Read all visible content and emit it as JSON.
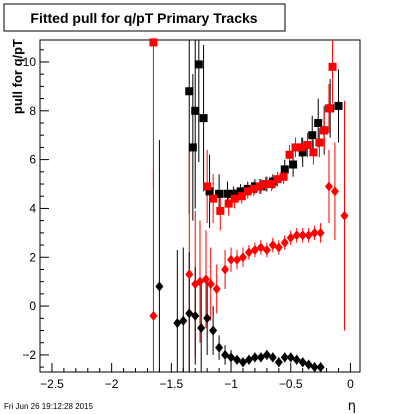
{
  "chart_data": {
    "type": "scatter",
    "title": "Fitted pull for q/pT  Primary Tracks",
    "ylabel": "pull for q/pT",
    "xlabel": "η",
    "timestamp": "Fri Jun 26 19:12:28 2015",
    "xlim": [
      -2.6,
      0.08
    ],
    "ylim": [
      -2.7,
      10.9
    ],
    "x_ticks": [
      -2.5,
      -2,
      -1.5,
      -1,
      -0.5,
      0
    ],
    "x_tick_labels": [
      "−2.5",
      "−2",
      "−1.5",
      "−1",
      "−0.5",
      "0"
    ],
    "y_ticks": [
      -2,
      0,
      2,
      4,
      6,
      8,
      10
    ],
    "y_tick_labels": [
      "−2",
      "0",
      "2",
      "4",
      "6",
      "8",
      "10"
    ],
    "grid": false,
    "legend": "none",
    "series": [
      {
        "color": "#000000",
        "marker": "square",
        "points": [
          {
            "x": -1.35,
            "y": 8.8,
            "err": 5.0
          },
          {
            "x": -1.3,
            "y": 8.0,
            "err": 4.0
          },
          {
            "x": -1.27,
            "y": 9.9,
            "err": 4.0
          },
          {
            "x": -1.23,
            "y": 7.7,
            "err": 3.0
          },
          {
            "x": -1.32,
            "y": 6.5,
            "err": 3.0
          },
          {
            "x": -1.18,
            "y": 4.7,
            "err": 1.5
          },
          {
            "x": -1.1,
            "y": 4.6,
            "err": 0.8
          },
          {
            "x": -1.03,
            "y": 4.6,
            "err": 0.5
          },
          {
            "x": -0.98,
            "y": 4.6,
            "err": 0.3
          },
          {
            "x": -0.92,
            "y": 4.7,
            "err": 0.3
          },
          {
            "x": -0.86,
            "y": 4.8,
            "err": 0.3
          },
          {
            "x": -0.8,
            "y": 4.9,
            "err": 0.3
          },
          {
            "x": -0.75,
            "y": 4.9,
            "err": 0.3
          },
          {
            "x": -0.7,
            "y": 5.0,
            "err": 0.3
          },
          {
            "x": -0.65,
            "y": 5.1,
            "err": 0.3
          },
          {
            "x": -0.55,
            "y": 5.6,
            "err": 0.4
          },
          {
            "x": -0.48,
            "y": 5.8,
            "err": 0.5
          },
          {
            "x": -0.4,
            "y": 6.3,
            "err": 0.6
          },
          {
            "x": -0.32,
            "y": 7.0,
            "err": 0.8
          },
          {
            "x": -0.27,
            "y": 7.5,
            "err": 1.0
          },
          {
            "x": -0.22,
            "y": 7.2,
            "err": 1.0
          },
          {
            "x": -0.17,
            "y": 8.1,
            "err": 1.2
          },
          {
            "x": -0.1,
            "y": 8.2,
            "err": 1.5
          }
        ]
      },
      {
        "color": "#ff0000",
        "marker": "square",
        "points": [
          {
            "x": -1.65,
            "y": 10.8,
            "err": 6.0
          },
          {
            "x": -1.2,
            "y": 4.9,
            "err": 1.5
          },
          {
            "x": -1.15,
            "y": 4.4,
            "err": 1.0
          },
          {
            "x": -1.09,
            "y": 3.9,
            "err": 0.8
          },
          {
            "x": -1.02,
            "y": 4.2,
            "err": 0.5
          },
          {
            "x": -0.97,
            "y": 4.4,
            "err": 0.4
          },
          {
            "x": -0.91,
            "y": 4.5,
            "err": 0.3
          },
          {
            "x": -0.86,
            "y": 4.7,
            "err": 0.3
          },
          {
            "x": -0.81,
            "y": 4.8,
            "err": 0.3
          },
          {
            "x": -0.76,
            "y": 4.9,
            "err": 0.3
          },
          {
            "x": -0.71,
            "y": 5.0,
            "err": 0.3
          },
          {
            "x": -0.66,
            "y": 5.0,
            "err": 0.3
          },
          {
            "x": -0.61,
            "y": 5.2,
            "err": 0.3
          },
          {
            "x": -0.56,
            "y": 5.3,
            "err": 0.3
          },
          {
            "x": -0.51,
            "y": 6.2,
            "err": 0.4
          },
          {
            "x": -0.46,
            "y": 6.5,
            "err": 0.4
          },
          {
            "x": -0.41,
            "y": 6.5,
            "err": 0.4
          },
          {
            "x": -0.36,
            "y": 6.6,
            "err": 0.5
          },
          {
            "x": -0.31,
            "y": 6.3,
            "err": 0.5
          },
          {
            "x": -0.26,
            "y": 6.7,
            "err": 0.6
          },
          {
            "x": -0.22,
            "y": 7.2,
            "err": 0.8
          },
          {
            "x": -0.18,
            "y": 8.1,
            "err": 1.0
          },
          {
            "x": -0.15,
            "y": 9.8,
            "err": 1.5
          }
        ]
      },
      {
        "color": "#ff0000",
        "marker": "diamond",
        "points": [
          {
            "x": -1.65,
            "y": -0.4,
            "err": 6.0
          },
          {
            "x": -1.35,
            "y": 1.3,
            "err": 5.0
          },
          {
            "x": -1.3,
            "y": 0.9,
            "err": 3.0
          },
          {
            "x": -1.26,
            "y": 1.0,
            "err": 2.5
          },
          {
            "x": -1.21,
            "y": 1.1,
            "err": 2.0
          },
          {
            "x": -1.17,
            "y": 0.9,
            "err": 1.5
          },
          {
            "x": -1.12,
            "y": 0.7,
            "err": 1.0
          },
          {
            "x": -1.05,
            "y": 1.5,
            "err": 0.8
          },
          {
            "x": -1.0,
            "y": 1.9,
            "err": 0.5
          },
          {
            "x": -0.95,
            "y": 1.9,
            "err": 0.4
          },
          {
            "x": -0.9,
            "y": 2.0,
            "err": 0.4
          },
          {
            "x": -0.85,
            "y": 2.2,
            "err": 0.3
          },
          {
            "x": -0.8,
            "y": 2.3,
            "err": 0.3
          },
          {
            "x": -0.75,
            "y": 2.4,
            "err": 0.3
          },
          {
            "x": -0.7,
            "y": 2.3,
            "err": 0.3
          },
          {
            "x": -0.65,
            "y": 2.5,
            "err": 0.3
          },
          {
            "x": -0.6,
            "y": 2.4,
            "err": 0.3
          },
          {
            "x": -0.55,
            "y": 2.6,
            "err": 0.3
          },
          {
            "x": -0.5,
            "y": 2.8,
            "err": 0.3
          },
          {
            "x": -0.45,
            "y": 2.9,
            "err": 0.3
          },
          {
            "x": -0.4,
            "y": 2.9,
            "err": 0.3
          },
          {
            "x": -0.35,
            "y": 2.9,
            "err": 0.3
          },
          {
            "x": -0.3,
            "y": 3.0,
            "err": 0.3
          },
          {
            "x": -0.25,
            "y": 3.0,
            "err": 0.4
          },
          {
            "x": -0.18,
            "y": 4.9,
            "err": 1.5
          },
          {
            "x": -0.13,
            "y": 4.7,
            "err": 2.0
          },
          {
            "x": -0.05,
            "y": 3.7,
            "err": 4.7
          }
        ]
      },
      {
        "color": "#000000",
        "marker": "diamond",
        "points": [
          {
            "x": -1.6,
            "y": 0.8,
            "err": 6.0
          },
          {
            "x": -1.45,
            "y": -0.7,
            "err": 3.0
          },
          {
            "x": -1.4,
            "y": -0.6,
            "err": 3.0
          },
          {
            "x": -1.35,
            "y": -0.3,
            "err": 2.5
          },
          {
            "x": -1.3,
            "y": -0.4,
            "err": 2.0
          },
          {
            "x": -1.25,
            "y": -0.9,
            "err": 2.0
          },
          {
            "x": -1.2,
            "y": -0.5,
            "err": 1.5
          },
          {
            "x": -1.15,
            "y": -1.0,
            "err": 1.0
          },
          {
            "x": -1.1,
            "y": -1.7,
            "err": 0.5
          },
          {
            "x": -1.05,
            "y": -2.0,
            "err": 0.4
          },
          {
            "x": -1.0,
            "y": -2.1,
            "err": 0.3
          },
          {
            "x": -0.95,
            "y": -2.2,
            "err": 0.2
          },
          {
            "x": -0.9,
            "y": -2.3,
            "err": 0.2
          },
          {
            "x": -0.85,
            "y": -2.2,
            "err": 0.2
          },
          {
            "x": -0.8,
            "y": -2.1,
            "err": 0.2
          },
          {
            "x": -0.75,
            "y": -2.1,
            "err": 0.2
          },
          {
            "x": -0.7,
            "y": -2.0,
            "err": 0.2
          },
          {
            "x": -0.65,
            "y": -2.1,
            "err": 0.2
          },
          {
            "x": -0.6,
            "y": -2.3,
            "err": 0.2
          },
          {
            "x": -0.55,
            "y": -2.1,
            "err": 0.2
          },
          {
            "x": -0.5,
            "y": -2.1,
            "err": 0.2
          },
          {
            "x": -0.45,
            "y": -2.2,
            "err": 0.2
          },
          {
            "x": -0.4,
            "y": -2.3,
            "err": 0.2
          },
          {
            "x": -0.35,
            "y": -2.4,
            "err": 0.2
          },
          {
            "x": -0.3,
            "y": -2.5,
            "err": 0.2
          },
          {
            "x": -0.25,
            "y": -2.5,
            "err": 0.2
          }
        ]
      }
    ]
  }
}
